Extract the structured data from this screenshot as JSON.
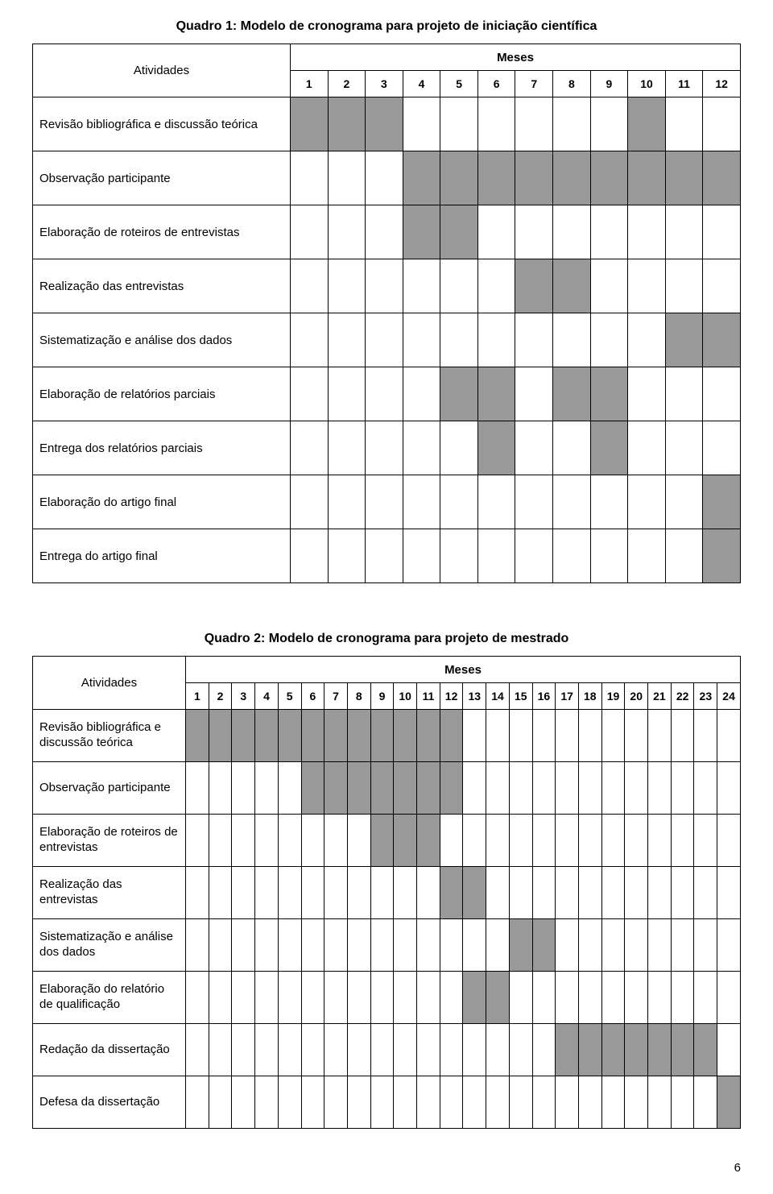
{
  "colors": {
    "filled": "#999999",
    "border": "#000000",
    "background": "#ffffff",
    "text": "#000000"
  },
  "quadro1": {
    "title": "Quadro 1: Modelo de cronograma para projeto de iniciação científica",
    "activities_label": "Atividades",
    "months_label": "Meses",
    "months": [
      "1",
      "2",
      "3",
      "4",
      "5",
      "6",
      "7",
      "8",
      "9",
      "10",
      "11",
      "12"
    ],
    "rows": [
      {
        "label": "Revisão bibliográfica e discussão teórica",
        "fill": [
          1,
          1,
          1,
          0,
          0,
          0,
          0,
          0,
          0,
          1,
          0,
          0
        ]
      },
      {
        "label": "Observação participante",
        "fill": [
          0,
          0,
          0,
          1,
          1,
          1,
          1,
          1,
          1,
          1,
          1,
          1
        ]
      },
      {
        "label": "Elaboração de roteiros de entrevistas",
        "fill": [
          0,
          0,
          0,
          1,
          1,
          0,
          0,
          0,
          0,
          0,
          0,
          0
        ]
      },
      {
        "label": "Realização das entrevistas",
        "fill": [
          0,
          0,
          0,
          0,
          0,
          0,
          1,
          1,
          0,
          0,
          0,
          0
        ]
      },
      {
        "label": "Sistematização e análise dos dados",
        "fill": [
          0,
          0,
          0,
          0,
          0,
          0,
          0,
          0,
          0,
          0,
          1,
          1
        ]
      },
      {
        "label": "Elaboração de relatórios parciais",
        "fill": [
          0,
          0,
          0,
          0,
          1,
          1,
          0,
          1,
          1,
          0,
          0,
          0
        ]
      },
      {
        "label": "Entrega dos relatórios parciais",
        "fill": [
          0,
          0,
          0,
          0,
          0,
          1,
          0,
          0,
          1,
          0,
          0,
          0
        ]
      },
      {
        "label": "Elaboração do artigo final",
        "fill": [
          0,
          0,
          0,
          0,
          0,
          0,
          0,
          0,
          0,
          0,
          0,
          1
        ]
      },
      {
        "label": "Entrega do artigo final",
        "fill": [
          0,
          0,
          0,
          0,
          0,
          0,
          0,
          0,
          0,
          0,
          0,
          1
        ]
      }
    ]
  },
  "quadro2": {
    "title": "Quadro 2: Modelo de cronograma para projeto de mestrado",
    "activities_label": "Atividades",
    "months_label": "Meses",
    "months": [
      "1",
      "2",
      "3",
      "4",
      "5",
      "6",
      "7",
      "8",
      "9",
      "10",
      "11",
      "12",
      "13",
      "14",
      "15",
      "16",
      "17",
      "18",
      "19",
      "20",
      "21",
      "22",
      "23",
      "24"
    ],
    "rows": [
      {
        "label": "Revisão bibliográfica e discussão teórica",
        "fill": [
          1,
          1,
          1,
          1,
          1,
          1,
          1,
          1,
          1,
          1,
          1,
          1,
          0,
          0,
          0,
          0,
          0,
          0,
          0,
          0,
          0,
          0,
          0,
          0
        ]
      },
      {
        "label": "Observação participante",
        "fill": [
          0,
          0,
          0,
          0,
          0,
          1,
          1,
          1,
          1,
          1,
          1,
          1,
          0,
          0,
          0,
          0,
          0,
          0,
          0,
          0,
          0,
          0,
          0,
          0
        ]
      },
      {
        "label": "Elaboração de roteiros de entrevistas",
        "fill": [
          0,
          0,
          0,
          0,
          0,
          0,
          0,
          0,
          1,
          1,
          1,
          0,
          0,
          0,
          0,
          0,
          0,
          0,
          0,
          0,
          0,
          0,
          0,
          0
        ]
      },
      {
        "label": "Realização das entrevistas",
        "fill": [
          0,
          0,
          0,
          0,
          0,
          0,
          0,
          0,
          0,
          0,
          0,
          1,
          1,
          0,
          0,
          0,
          0,
          0,
          0,
          0,
          0,
          0,
          0,
          0
        ]
      },
      {
        "label": "Sistematização e análise dos dados",
        "fill": [
          0,
          0,
          0,
          0,
          0,
          0,
          0,
          0,
          0,
          0,
          0,
          0,
          0,
          0,
          1,
          1,
          0,
          0,
          0,
          0,
          0,
          0,
          0,
          0
        ]
      },
      {
        "label": "Elaboração do relatório de qualificação",
        "fill": [
          0,
          0,
          0,
          0,
          0,
          0,
          0,
          0,
          0,
          0,
          0,
          0,
          1,
          1,
          0,
          0,
          0,
          0,
          0,
          0,
          0,
          0,
          0,
          0
        ]
      },
      {
        "label": "Redação da dissertação",
        "fill": [
          0,
          0,
          0,
          0,
          0,
          0,
          0,
          0,
          0,
          0,
          0,
          0,
          0,
          0,
          0,
          0,
          1,
          1,
          1,
          1,
          1,
          1,
          1,
          0
        ]
      },
      {
        "label": "Defesa da dissertação",
        "fill": [
          0,
          0,
          0,
          0,
          0,
          0,
          0,
          0,
          0,
          0,
          0,
          0,
          0,
          0,
          0,
          0,
          0,
          0,
          0,
          0,
          0,
          0,
          0,
          1
        ]
      }
    ]
  },
  "page_number": "6"
}
